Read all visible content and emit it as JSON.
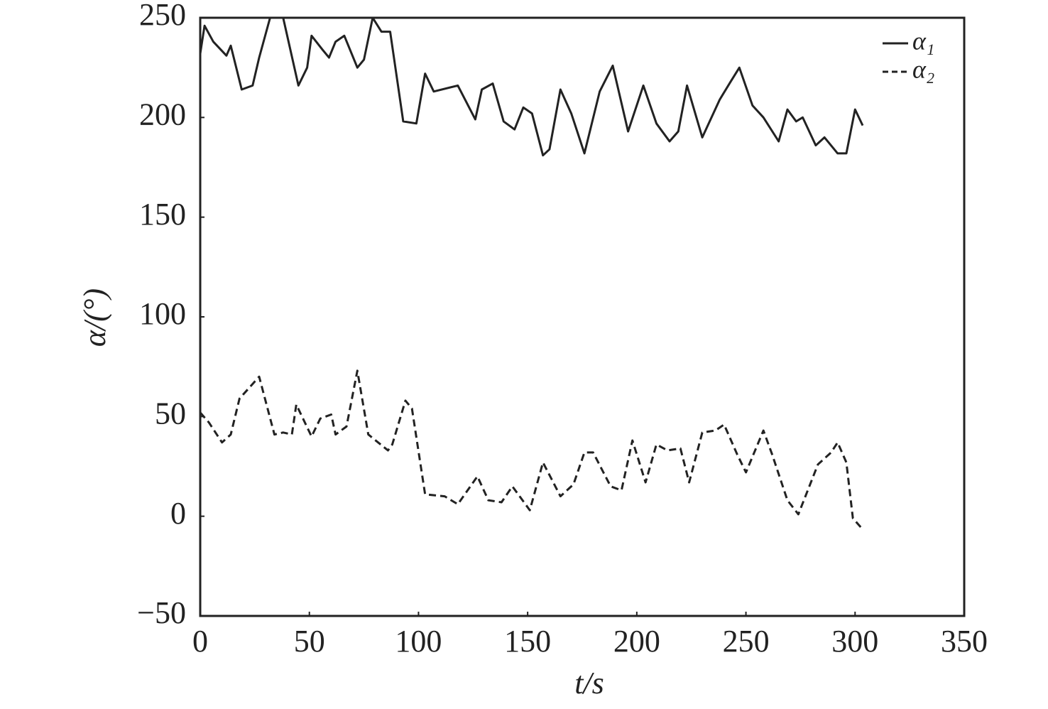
{
  "chart_data": {
    "type": "line",
    "xlabel": "t/s",
    "ylabel": "α/(°)",
    "xlim": [
      0,
      350
    ],
    "xticks": [
      0,
      50,
      100,
      150,
      200,
      250,
      300,
      350
    ],
    "ylim": [
      -50,
      250
    ],
    "yticks": [
      {
        "value": -50,
        "label": "−50"
      },
      0,
      50,
      100,
      150,
      200,
      250
    ],
    "legend": "upper right",
    "series": [
      {
        "name": "α₁",
        "color": "#222222",
        "linestyle": "solid",
        "x": [
          0,
          2,
          6,
          12,
          14,
          19,
          24,
          27,
          32,
          38,
          45,
          49,
          51,
          56,
          59,
          62,
          66,
          72,
          75,
          79,
          83,
          87,
          93,
          99,
          103,
          107,
          118,
          126,
          129,
          134,
          139,
          144,
          148,
          152,
          157,
          160,
          165,
          170,
          176,
          183,
          189,
          196,
          203,
          209,
          215,
          219,
          223,
          230,
          238,
          243,
          247,
          253,
          258,
          265,
          269,
          273,
          276,
          282,
          286,
          292,
          296,
          300,
          303.5
        ],
        "values": [
          232,
          246,
          238,
          231,
          236,
          214,
          216,
          230,
          250,
          250,
          216,
          225,
          241,
          234,
          230,
          238,
          241,
          225,
          229,
          250,
          243,
          243,
          198,
          197,
          222,
          213,
          216,
          199,
          214,
          217,
          198,
          194,
          205,
          202,
          181,
          184,
          214,
          202,
          182,
          213,
          226,
          193,
          216,
          197,
          188,
          193,
          216,
          190,
          209,
          218,
          225,
          206,
          200,
          188,
          204,
          198,
          200,
          186,
          190,
          182,
          182,
          204,
          196
        ]
      },
      {
        "name": "α₂",
        "color": "#222222",
        "linestyle": "dashed",
        "x": [
          0,
          4,
          10,
          14,
          18,
          27,
          34,
          38,
          42,
          44,
          51,
          55,
          60,
          62,
          67,
          72,
          77,
          86,
          88,
          94,
          97,
          103,
          112,
          118,
          127,
          132,
          138,
          143,
          151,
          157,
          165,
          171,
          176,
          180,
          188,
          193,
          198,
          204,
          209,
          214,
          220,
          224,
          230,
          236,
          240,
          246,
          250,
          258,
          262,
          269,
          274,
          283,
          289,
          292,
          296,
          299,
          303
        ],
        "values": [
          52,
          47,
          37,
          41,
          59,
          70,
          41,
          42,
          41,
          56,
          40,
          49,
          51,
          41,
          45,
          73,
          41,
          33,
          36,
          58,
          54,
          11,
          10,
          6,
          20,
          8,
          7,
          15,
          3,
          27,
          10,
          16,
          32,
          32,
          15,
          13,
          38,
          17,
          36,
          33,
          34,
          17,
          42,
          43,
          46,
          31,
          22,
          43,
          31,
          8,
          1,
          26,
          32,
          37,
          27,
          -1,
          -6
        ]
      }
    ]
  }
}
